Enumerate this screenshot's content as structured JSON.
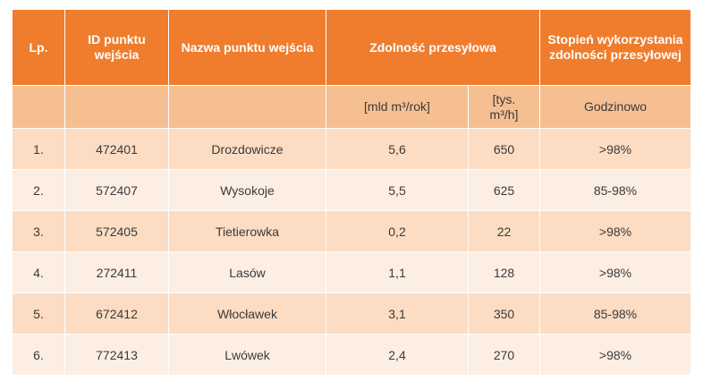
{
  "header": {
    "lp": "Lp.",
    "id": "ID punktu wejścia",
    "name": "Nazwa punktu wejścia",
    "capacity": "Zdolność przesyłowa",
    "usage": "Stopień wykorzystania zdolności przesyłowej"
  },
  "subheader": {
    "lp": "",
    "id": "",
    "name": "",
    "unit_year": "[mld m³/rok]",
    "unit_hour": "[tys. m³/h]",
    "usage": "Godzinowo"
  },
  "rows": [
    {
      "lp": "1.",
      "id": "472401",
      "name": "Drozdowicze",
      "year": "5,6",
      "hour": "650",
      "usage": ">98%"
    },
    {
      "lp": "2.",
      "id": "572407",
      "name": "Wysokoje",
      "year": "5,5",
      "hour": "625",
      "usage": "85-98%"
    },
    {
      "lp": "3.",
      "id": "572405",
      "name": "Tietierowka",
      "year": "0,2",
      "hour": "22",
      "usage": ">98%"
    },
    {
      "lp": "4.",
      "id": "272411",
      "name": "Lasów",
      "year": "1,1",
      "hour": "128",
      "usage": ">98%"
    },
    {
      "lp": "5.",
      "id": "672412",
      "name": "Włocławek",
      "year": "3,1",
      "hour": "350",
      "usage": "85-98%"
    },
    {
      "lp": "6.",
      "id": "772413",
      "name": "Lwówek",
      "year": "2,4",
      "hour": "270",
      "usage": ">98%"
    }
  ],
  "colors": {
    "header_bg": "#ef7d2d",
    "subheader_bg": "#f6bf92",
    "row_odd_bg": "#fcdcc2",
    "row_even_bg": "#fdeee3"
  }
}
